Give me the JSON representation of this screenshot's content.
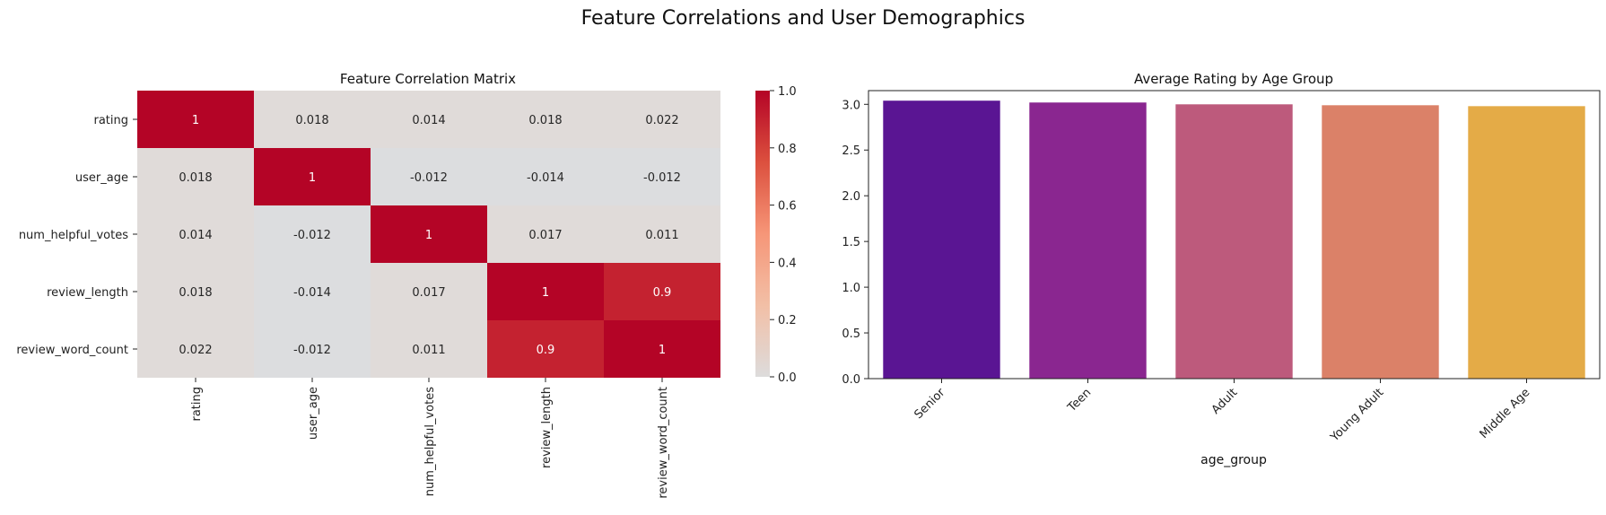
{
  "figure": {
    "suptitle": "Feature Correlations and User Demographics"
  },
  "chart_data": [
    {
      "type": "heatmap",
      "title": "Feature Correlation Matrix",
      "row_labels": [
        "rating",
        "user_age",
        "num_helpful_votes",
        "review_length",
        "review_word_count"
      ],
      "col_labels": [
        "rating",
        "user_age",
        "num_helpful_votes",
        "review_length",
        "review_word_count"
      ],
      "values": [
        [
          1,
          0.018,
          0.014,
          0.018,
          0.022
        ],
        [
          0.018,
          1,
          -0.012,
          -0.014,
          -0.012
        ],
        [
          0.014,
          -0.012,
          1,
          0.017,
          0.011
        ],
        [
          0.018,
          -0.014,
          0.017,
          1,
          0.9
        ],
        [
          0.022,
          -0.012,
          0.011,
          0.9,
          1
        ]
      ],
      "annotations": [
        [
          "1",
          "0.018",
          "0.014",
          "0.018",
          "0.022"
        ],
        [
          "0.018",
          "1",
          "-0.012",
          "-0.014",
          "-0.012"
        ],
        [
          "0.014",
          "-0.012",
          "1",
          "0.017",
          "0.011"
        ],
        [
          "0.018",
          "-0.014",
          "0.017",
          "1",
          "0.9"
        ],
        [
          "0.022",
          "-0.012",
          "0.011",
          "0.9",
          "1"
        ]
      ],
      "colormap": "coolwarm",
      "vmin": 0,
      "vmax": 1,
      "colorbar_ticks": [
        "0.0",
        "0.2",
        "0.4",
        "0.6",
        "0.8",
        "1.0"
      ],
      "grid": false
    },
    {
      "type": "bar",
      "title": "Average Rating by Age Group",
      "categories": [
        "Senior",
        "Teen",
        "Adult",
        "Young Adult",
        "Middle Age"
      ],
      "values": [
        3.04,
        3.02,
        3.0,
        2.99,
        2.98
      ],
      "colors": [
        "#5a1593",
        "#8a2690",
        "#bd5a7c",
        "#db8168",
        "#e4ab47"
      ],
      "xlabel": "age_group",
      "ylabel": "",
      "ylim": [
        0,
        3.15
      ],
      "yticks": [
        "0.0",
        "0.5",
        "1.0",
        "1.5",
        "2.0",
        "2.5",
        "3.0"
      ],
      "grid": false
    }
  ]
}
